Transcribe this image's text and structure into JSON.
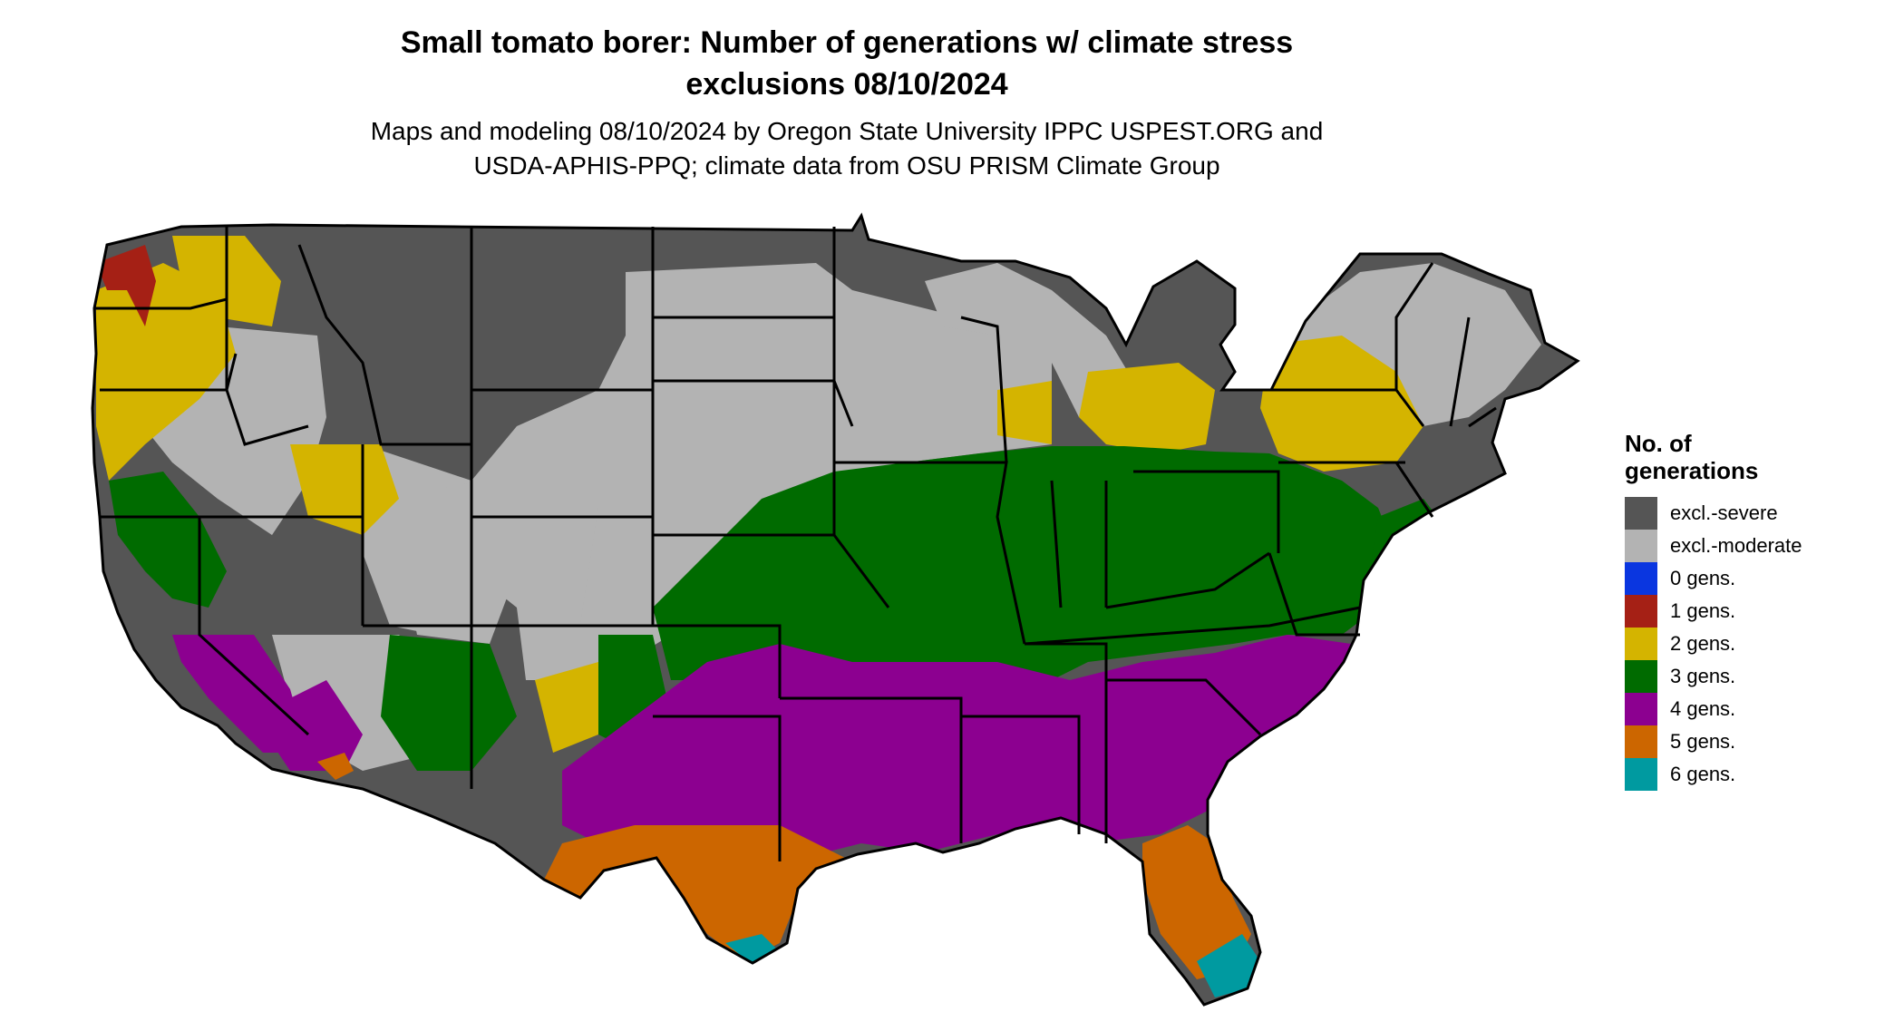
{
  "title_line1": "Small tomato borer: Number of generations w/ climate stress",
  "title_line2": "exclusions 08/10/2024",
  "subtitle_line1": "Maps and modeling 08/10/2024 by Oregon State University IPPC USPEST.ORG and",
  "subtitle_line2": "USDA-APHIS-PPQ; climate data from OSU PRISM Climate Group",
  "legend": {
    "title_line1": "No. of",
    "title_line2": "generations",
    "items": [
      {
        "label": "excl.-severe",
        "color": "#555555"
      },
      {
        "label": "excl.-moderate",
        "color": "#b3b3b3"
      },
      {
        "label": "0 gens.",
        "color": "#0a36e0"
      },
      {
        "label": "1 gens.",
        "color": "#a52015"
      },
      {
        "label": "2 gens.",
        "color": "#d4b400"
      },
      {
        "label": "3 gens.",
        "color": "#006b00"
      },
      {
        "label": "4 gens.",
        "color": "#8c0090"
      },
      {
        "label": "5 gens.",
        "color": "#cc6600"
      },
      {
        "label": "6 gens.",
        "color": "#009aa0"
      }
    ]
  },
  "map": {
    "colors": {
      "outline": "#000000"
    }
  }
}
